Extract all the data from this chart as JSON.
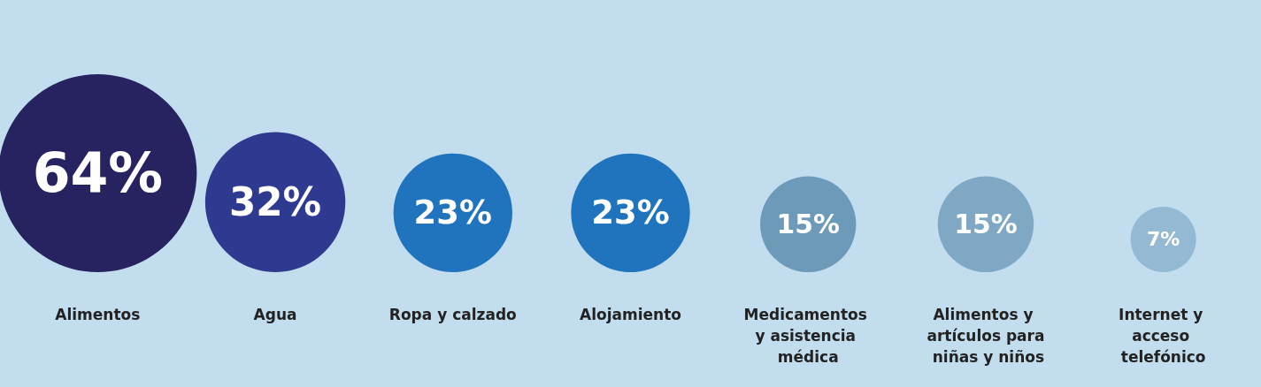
{
  "chart_data": {
    "type": "other",
    "categories": [
      "Alimentos",
      "Agua",
      "Ropa y calzado",
      "Alojamiento",
      "Medicamentos y asistencia médica",
      "Alimentos y artículos para niñas y niños",
      "Internet y acceso telefónico"
    ],
    "values": [
      64,
      32,
      23,
      23,
      15,
      15,
      7
    ],
    "value_labels": [
      "64%",
      "32%",
      "23%",
      "23%",
      "15%",
      "15%",
      "7%"
    ],
    "colors": [
      "#272361",
      "#2e3a8f",
      "#1f74bd",
      "#1f74bd",
      "#6e9aba",
      "#7ea8c4",
      "#94bad3"
    ]
  }
}
